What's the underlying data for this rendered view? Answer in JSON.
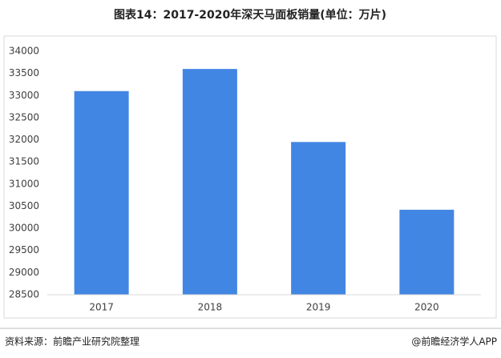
{
  "chart_data": {
    "type": "bar",
    "title": "图表14：2017-2020年深天马面板销量(单位：万片)",
    "categories": [
      "2017",
      "2018",
      "2019",
      "2020"
    ],
    "values": [
      33100,
      33600,
      31950,
      30420
    ],
    "color": "#4286e4",
    "ylim": [
      28500,
      34000
    ],
    "yticks": [
      28500,
      29000,
      29500,
      30000,
      30500,
      31000,
      31500,
      32000,
      32500,
      33000,
      33500,
      34000
    ],
    "grid": false
  },
  "footer": {
    "source": "资料来源：前瞻产业研究院整理",
    "brand": "@前瞻经济学人APP"
  }
}
